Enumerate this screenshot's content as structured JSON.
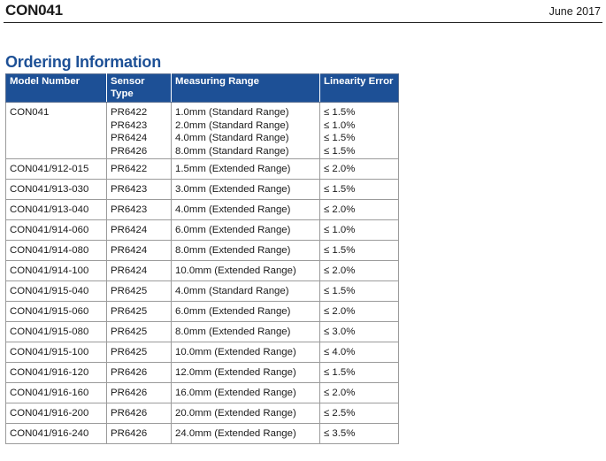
{
  "header": {
    "doc_id": "CON041",
    "date": "June 2017"
  },
  "section_title": "Ordering Information",
  "table": {
    "columns": [
      "Model Number",
      "Sensor Type",
      "Measuring Range",
      "Linearity Error"
    ],
    "first_row": {
      "model": "CON041",
      "sensors": [
        "PR6422",
        "PR6423",
        "PR6424",
        "PR6426"
      ],
      "ranges": [
        "1.0mm (Standard Range)",
        "2.0mm (Standard Range)",
        "4.0mm (Standard Range)",
        "8.0mm (Standard Range)"
      ],
      "errors": [
        "≤ 1.5%",
        "≤ 1.0%",
        "≤ 1.5%",
        "≤ 1.5%"
      ]
    },
    "rows": [
      [
        "CON041/912-015",
        "PR6422",
        "1.5mm (Extended Range)",
        "≤ 2.0%"
      ],
      [
        "CON041/913-030",
        "PR6423",
        "3.0mm (Extended Range)",
        "≤ 1.5%"
      ],
      [
        "CON041/913-040",
        "PR6423",
        "4.0mm (Extended Range)",
        "≤ 2.0%"
      ],
      [
        "CON041/914-060",
        "PR6424",
        "6.0mm (Extended Range)",
        "≤ 1.0%"
      ],
      [
        "CON041/914-080",
        "PR6424",
        "8.0mm (Extended Range)",
        "≤ 1.5%"
      ],
      [
        "CON041/914-100",
        "PR6424",
        "10.0mm (Extended Range)",
        "≤ 2.0%"
      ],
      [
        "CON041/915-040",
        "PR6425",
        "4.0mm (Standard Range)",
        "≤ 1.5%"
      ],
      [
        "CON041/915-060",
        "PR6425",
        "6.0mm (Extended Range)",
        "≤ 2.0%"
      ],
      [
        "CON041/915-080",
        "PR6425",
        "8.0mm (Extended Range)",
        "≤ 3.0%"
      ],
      [
        "CON041/915-100",
        "PR6425",
        "10.0mm (Extended Range)",
        "≤ 4.0%"
      ],
      [
        "CON041/916-120",
        "PR6426",
        "12.0mm (Extended Range)",
        "≤ 1.5%"
      ],
      [
        "CON041/916-160",
        "PR6426",
        "16.0mm (Extended Range)",
        "≤ 2.0%"
      ],
      [
        "CON041/916-200",
        "PR6426",
        "20.0mm (Extended Range)",
        "≤ 2.5%"
      ],
      [
        "CON041/916-240",
        "PR6426",
        "24.0mm (Extended Range)",
        "≤ 3.5%"
      ]
    ]
  },
  "colors": {
    "accent": "#1d5096",
    "header_text": "#ffffff",
    "grid": "#9b9b9b"
  }
}
